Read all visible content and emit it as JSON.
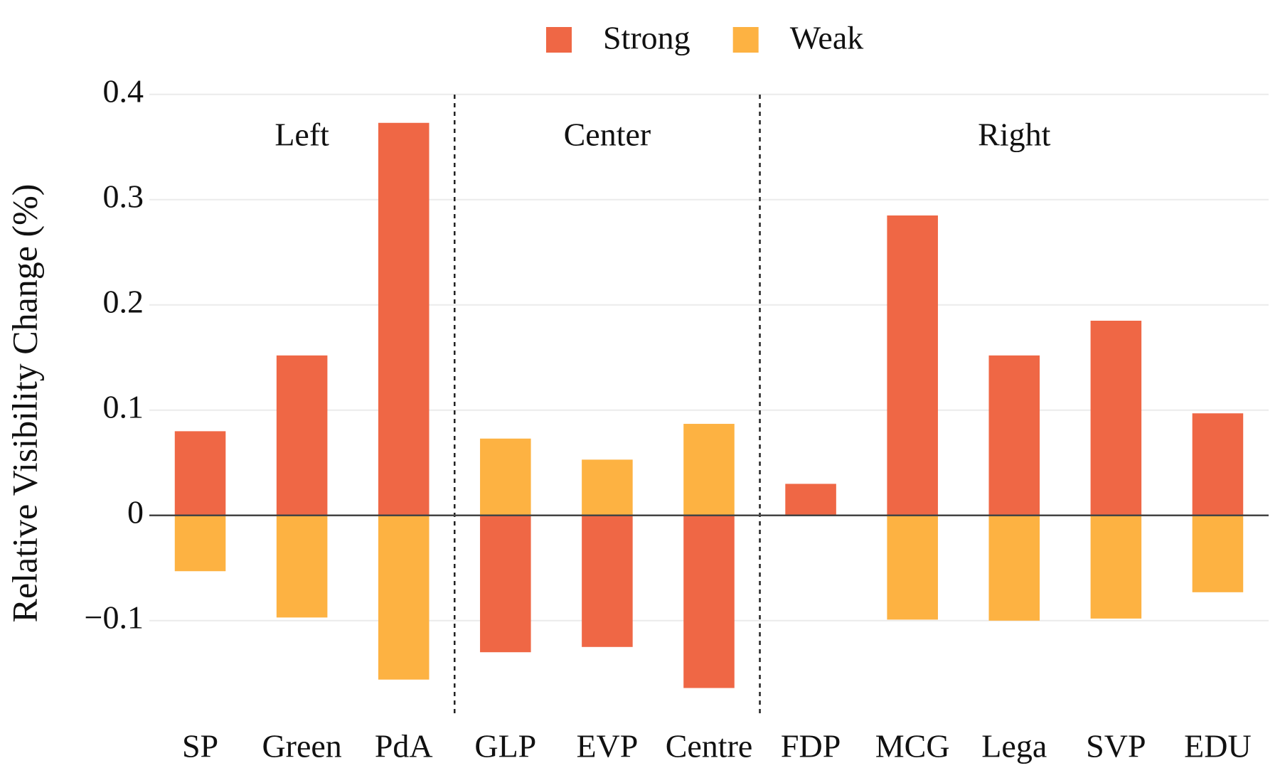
{
  "chart_data": {
    "type": "bar",
    "ylabel": "Relative Visibility Change (%)",
    "groups": [
      {
        "label": "Left",
        "categories": [
          "SP",
          "Green",
          "PdA"
        ]
      },
      {
        "label": "Center",
        "categories": [
          "GLP",
          "EVP",
          "Centre"
        ]
      },
      {
        "label": "Right",
        "categories": [
          "FDP",
          "MCG",
          "Lega",
          "SVP",
          "EDU"
        ]
      }
    ],
    "series": [
      {
        "name": "Strong",
        "color": "#ef6745",
        "values": [
          0.08,
          0.152,
          0.373,
          -0.13,
          -0.125,
          -0.164,
          0.03,
          0.285,
          0.152,
          0.185,
          0.097
        ]
      },
      {
        "name": "Weak",
        "color": "#fdb242",
        "values": [
          -0.053,
          -0.097,
          -0.156,
          0.073,
          0.053,
          0.087,
          0,
          -0.099,
          -0.1,
          -0.098,
          -0.073
        ]
      }
    ],
    "ylim": [
      -0.19,
      0.41
    ],
    "yticks": [
      {
        "value": -0.1,
        "label": "−0.1"
      },
      0,
      0.1,
      0.2,
      0.3,
      0.4
    ],
    "grid": true,
    "legend": "top"
  }
}
